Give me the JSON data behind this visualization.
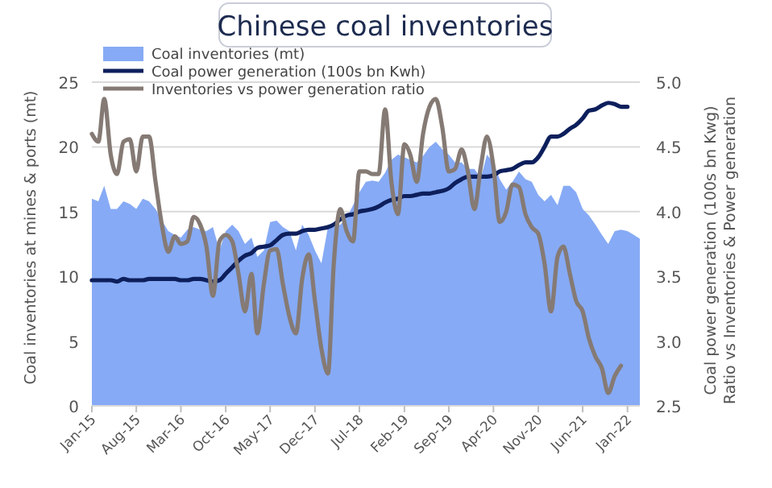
{
  "chart_data": {
    "type": "line",
    "title": "Chinese coal inventories",
    "ylabel": "Coal inventories at mines & ports (mt)",
    "y2label": "Coal power generation (100s bn Kwg)\nRatio vs Inventories & Power generation",
    "x": [
      "2015-01",
      "2015-02",
      "2015-03",
      "2015-04",
      "2015-05",
      "2015-06",
      "2015-07",
      "2015-08",
      "2015-09",
      "2015-10",
      "2015-11",
      "2015-12",
      "2016-01",
      "2016-02",
      "2016-03",
      "2016-04",
      "2016-05",
      "2016-06",
      "2016-07",
      "2016-08",
      "2016-09",
      "2016-10",
      "2016-11",
      "2016-12",
      "2017-01",
      "2017-02",
      "2017-03",
      "2017-04",
      "2017-05",
      "2017-06",
      "2017-07",
      "2017-08",
      "2017-09",
      "2017-10",
      "2017-11",
      "2017-12",
      "2018-01",
      "2018-02",
      "2018-03",
      "2018-04",
      "2018-05",
      "2018-06",
      "2018-07",
      "2018-08",
      "2018-09",
      "2018-10",
      "2018-11",
      "2018-12",
      "2019-01",
      "2019-02",
      "2019-03",
      "2019-04",
      "2019-05",
      "2019-06",
      "2019-07",
      "2019-08",
      "2019-09",
      "2019-10",
      "2019-11",
      "2019-12",
      "2020-01",
      "2020-02",
      "2020-03",
      "2020-04",
      "2020-05",
      "2020-06",
      "2020-07",
      "2020-08",
      "2020-09",
      "2020-10",
      "2020-11",
      "2020-12",
      "2021-01",
      "2021-02",
      "2021-03",
      "2021-04",
      "2021-05",
      "2021-06",
      "2021-07",
      "2021-08",
      "2021-09",
      "2021-10",
      "2021-11",
      "2021-12",
      "2022-01",
      "2022-02",
      "2022-03"
    ],
    "series": [
      {
        "type": "area",
        "name": "Coal inventories (mt)",
        "color": "#86aaf5",
        "values": [
          16,
          15.8,
          17,
          15.2,
          15.2,
          15.8,
          15.6,
          15.2,
          16,
          15.8,
          15.2,
          14.3,
          13.5,
          13.2,
          13,
          13.6,
          13.8,
          13.6,
          13.5,
          13.8,
          12,
          13.5,
          14,
          13.5,
          12.5,
          13,
          11.5,
          12,
          14.2,
          14.3,
          13.8,
          13.5,
          12,
          14,
          13.2,
          12,
          11,
          13.8,
          13.8,
          14,
          14.5,
          15.5,
          16.5,
          17.3,
          17.4,
          17.3,
          18,
          19,
          19.4,
          19.2,
          19,
          18.8,
          19.3,
          20,
          20.4,
          19.8,
          19.4,
          18.8,
          18.8,
          18.3,
          18.3,
          17.6,
          19.4,
          18.8,
          17.5,
          16.7,
          17.3,
          18.1,
          17.5,
          17.3,
          16.3,
          15.8,
          16.3,
          15.5,
          17,
          17,
          16.5,
          15.2,
          14.7,
          14,
          13.2,
          12.5,
          13.5,
          13.6,
          13.5,
          13.2,
          12.9
        ]
      },
      {
        "axis": "y2",
        "name": "Coal power generation (100s bn Kwh)",
        "color": "#0d1f5c",
        "values": [
          3.47,
          3.47,
          3.47,
          3.47,
          3.46,
          3.48,
          3.47,
          3.47,
          3.47,
          3.48,
          3.48,
          3.48,
          3.48,
          3.48,
          3.47,
          3.47,
          3.48,
          3.48,
          3.47,
          3.46,
          3.47,
          3.52,
          3.57,
          3.62,
          3.66,
          3.68,
          3.72,
          3.73,
          3.74,
          3.78,
          3.82,
          3.83,
          3.83,
          3.85,
          3.86,
          3.86,
          3.87,
          3.88,
          3.9,
          3.94,
          3.97,
          3.98,
          4.0,
          4.01,
          4.02,
          4.04,
          4.07,
          4.09,
          4.1,
          4.12,
          4.12,
          4.13,
          4.14,
          4.14,
          4.15,
          4.16,
          4.18,
          4.22,
          4.25,
          4.27,
          4.27,
          4.27,
          4.27,
          4.28,
          4.31,
          4.32,
          4.33,
          4.36,
          4.38,
          4.38,
          4.42,
          4.5,
          4.58,
          4.58,
          4.6,
          4.64,
          4.67,
          4.72,
          4.78,
          4.79,
          4.82,
          4.84,
          4.83,
          4.81,
          4.81,
          null,
          null
        ]
      },
      {
        "axis": "y2",
        "name": "Inventories vs power generation ratio",
        "color": "#857a74",
        "values": [
          4.6,
          4.54,
          4.87,
          4.44,
          4.29,
          4.54,
          4.56,
          4.31,
          4.58,
          4.58,
          4.23,
          3.9,
          3.69,
          3.81,
          3.75,
          3.77,
          3.96,
          3.9,
          3.73,
          3.35,
          3.77,
          3.82,
          3.77,
          3.52,
          3.23,
          3.52,
          3.06,
          3.44,
          3.7,
          3.71,
          3.44,
          3.19,
          3.06,
          3.48,
          3.67,
          3.31,
          2.94,
          2.75,
          3.6,
          4.02,
          3.85,
          3.77,
          4.31,
          4.31,
          4.29,
          4.29,
          4.79,
          4.23,
          3.98,
          4.52,
          4.44,
          4.23,
          4.6,
          4.81,
          4.87,
          4.65,
          4.31,
          4.33,
          4.48,
          4.31,
          4.02,
          4.35,
          4.58,
          4.35,
          3.92,
          4.0,
          4.21,
          4.19,
          3.98,
          3.88,
          3.83,
          3.6,
          3.23,
          3.65,
          3.73,
          3.52,
          3.31,
          3.23,
          3.02,
          2.88,
          2.79,
          2.6,
          2.73,
          2.81,
          null,
          null,
          null
        ]
      }
    ],
    "xlim": [
      "2015-01",
      "2022-03"
    ],
    "xticks": [
      {
        "value": "2015-01",
        "label": "Jan-15"
      },
      {
        "value": "2015-08",
        "label": "Aug-15"
      },
      {
        "value": "2016-03",
        "label": "Mar-16"
      },
      {
        "value": "2016-10",
        "label": "Oct-16"
      },
      {
        "value": "2017-05",
        "label": "May-17"
      },
      {
        "value": "2017-12",
        "label": "Dec-17"
      },
      {
        "value": "2018-07",
        "label": "Jul-18"
      },
      {
        "value": "2019-02",
        "label": "Feb-19"
      },
      {
        "value": "2019-09",
        "label": "Sep-19"
      },
      {
        "value": "2020-04",
        "label": "Apr-20"
      },
      {
        "value": "2020-11",
        "label": "Nov-20"
      },
      {
        "value": "2021-06",
        "label": "Jun-21"
      },
      {
        "value": "2022-01",
        "label": "Jan-22"
      }
    ],
    "ylim": [
      0,
      25
    ],
    "yticks": [
      0,
      5,
      10,
      15,
      20,
      25
    ],
    "y2lim": [
      2.5,
      5.0
    ],
    "y2ticks": [
      {
        "value": 2.5,
        "label": "2.5"
      },
      {
        "value": 3,
        "label": "3.0"
      },
      {
        "value": 3.5,
        "label": "3.5"
      },
      {
        "value": 4,
        "label": "4.0"
      },
      {
        "value": 4.5,
        "label": "4.5"
      },
      {
        "value": 5,
        "label": "5.0"
      }
    ],
    "grid": "y",
    "legend": "top left",
    "line_style": "solid"
  }
}
